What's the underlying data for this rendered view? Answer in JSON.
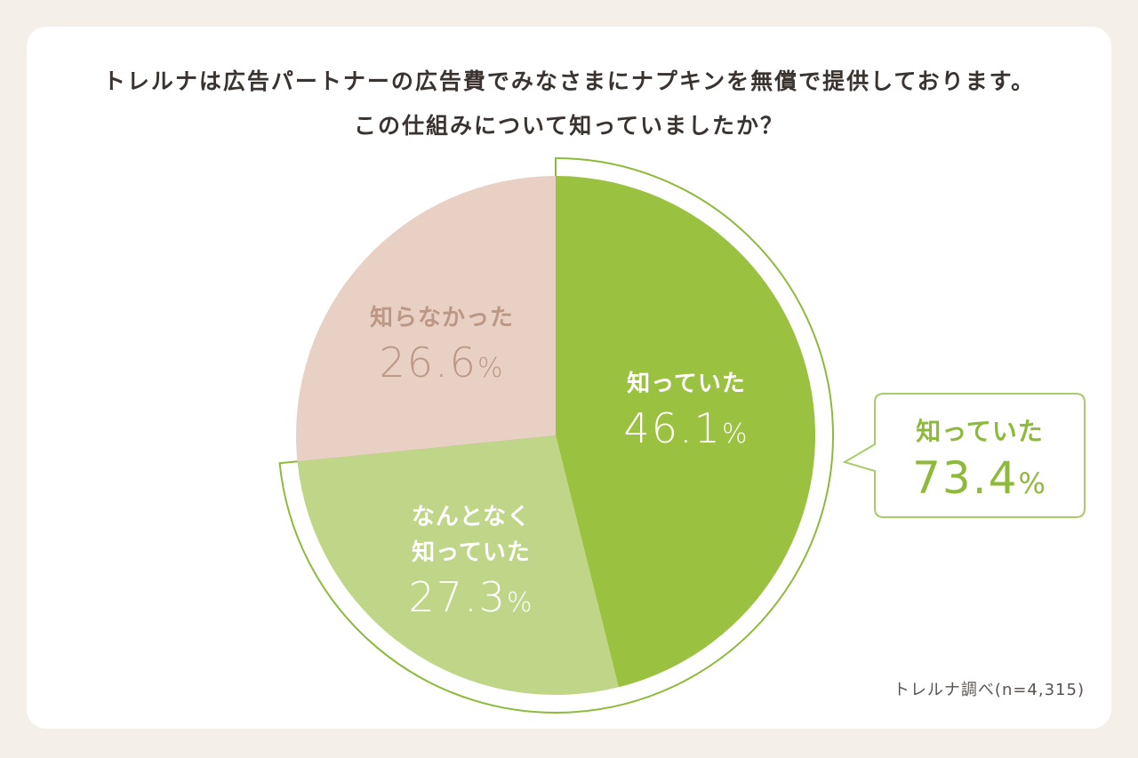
{
  "title_line1": "トレルナは広告パートナーの広告費でみなさまにナプキンを無償で提供しております。",
  "title_line2": "この仕組みについて知っていましたか？",
  "source": "トレルナ調べ(n=4,315)",
  "colors": {
    "knew": "#9bc140",
    "vaguely_knew": "#bfd688",
    "did_not_know": "#e8d0c4",
    "highlight": "#8dba3a",
    "background": "#f5efea"
  },
  "chart_data": {
    "type": "pie",
    "title": "トレルナは広告パートナーの広告費でみなさまにナプキンを無償で提供しております。この仕組みについて知っていましたか？",
    "slices": [
      {
        "label": "知っていた",
        "value": 46.1
      },
      {
        "label": "なんとなく知っていた",
        "value": 27.3
      },
      {
        "label": "知らなかった",
        "value": 26.6
      }
    ],
    "annotations": [
      {
        "label": "知っていた",
        "value": 73.4,
        "note": "知っていた + なんとなく知っていた"
      }
    ],
    "unit": "%"
  },
  "labels": {
    "knew_name": "知っていた",
    "knew_value": "46.1",
    "vague_name_line1": "なんとなく",
    "vague_name_line2": "知っていた",
    "vague_value": "27.3",
    "notknew_name": "知らなかった",
    "notknew_value": "26.6",
    "percent_sign": "%",
    "callout_name": "知っていた",
    "callout_value": "73.4"
  }
}
